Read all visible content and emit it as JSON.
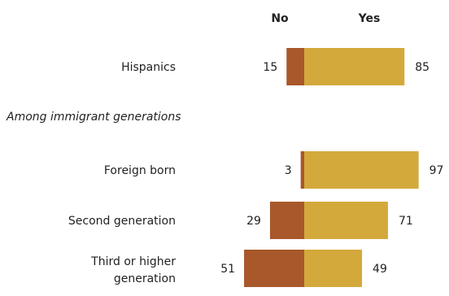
{
  "chart_data": {
    "type": "bar",
    "orientation": "diverging-horizontal",
    "column_headers": {
      "no": "No",
      "yes": "Yes"
    },
    "group_label": "Among immigrant generations",
    "categories": [
      {
        "name": "Hispanics",
        "lines": [
          "Hispanics"
        ],
        "no": 15,
        "yes": 85
      },
      {
        "name": "Foreign born",
        "lines": [
          "Foreign born"
        ],
        "no": 3,
        "yes": 97
      },
      {
        "name": "Second generation",
        "lines": [
          "Second generation"
        ],
        "no": 29,
        "yes": 71
      },
      {
        "name": "Third or higher generation",
        "lines": [
          "Third or higher",
          "generation"
        ],
        "no": 51,
        "yes": 49
      }
    ],
    "colors": {
      "no": "#a8582a",
      "yes": "#d4a93c"
    },
    "xlim": [
      0,
      100
    ],
    "grid": false,
    "legend": "column headers at top"
  }
}
